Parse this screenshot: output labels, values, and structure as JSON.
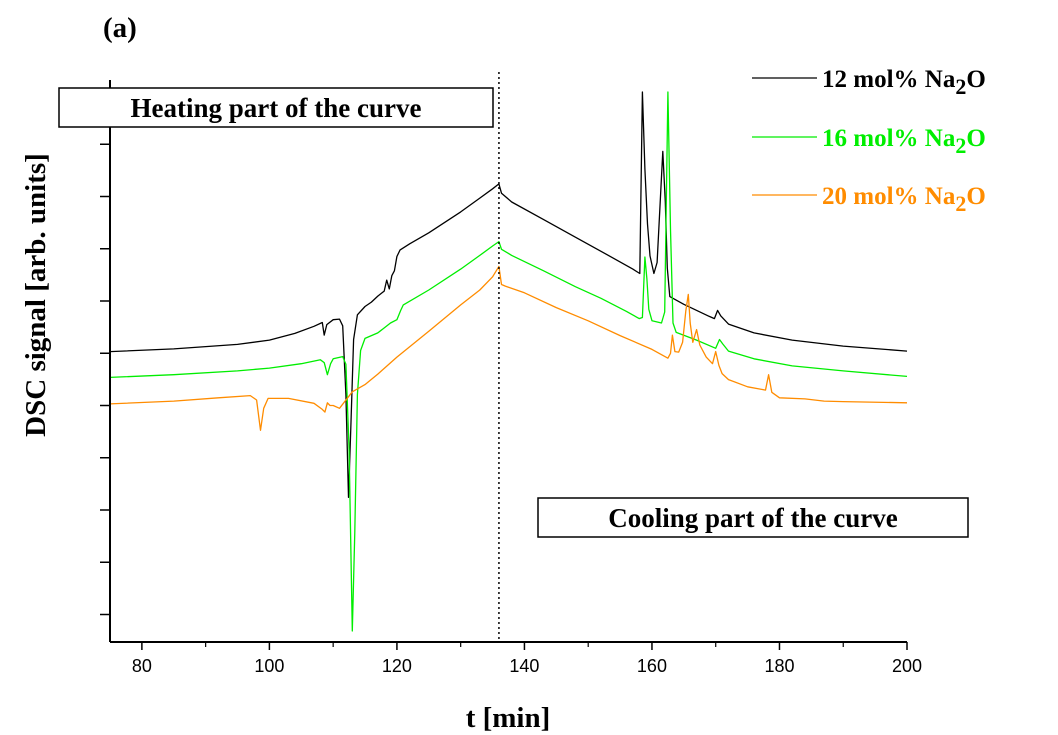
{
  "panel_label": "(a)",
  "chart_data": {
    "type": "line",
    "title": "",
    "xlabel": "t [min]",
    "ylabel": "DSC signal [arb. units]",
    "xlim": [
      75,
      200
    ],
    "ylim": [
      0,
      100
    ],
    "x_ticks": [
      80,
      100,
      120,
      140,
      160,
      180,
      200
    ],
    "y_tick_labels_shown": false,
    "grid": false,
    "legend_position": "top-right",
    "divider_x": 136,
    "annotations": [
      {
        "id": "heating",
        "text": "Heating part of the curve"
      },
      {
        "id": "cooling",
        "text": "Cooling part of the curve"
      }
    ],
    "series": [
      {
        "name": "12 mol% Na",
        "name_sub": "2",
        "name_suffix": "O",
        "color": "#000000",
        "points": [
          [
            75,
            52.8
          ],
          [
            85,
            53.3
          ],
          [
            95,
            54.1
          ],
          [
            100,
            54.9
          ],
          [
            104,
            56.1
          ],
          [
            107,
            57.4
          ],
          [
            108.3,
            58.1
          ],
          [
            108.6,
            55.8
          ],
          [
            109,
            57.7
          ],
          [
            110,
            58.6
          ],
          [
            111,
            58.7
          ],
          [
            111.5,
            57.5
          ],
          [
            112,
            45
          ],
          [
            112.4,
            26.3
          ],
          [
            112.8,
            40
          ],
          [
            113.2,
            55
          ],
          [
            113.8,
            59.5
          ],
          [
            115,
            61
          ],
          [
            116,
            61.8
          ],
          [
            117,
            62.9
          ],
          [
            118,
            63.8
          ],
          [
            118.4,
            65.8
          ],
          [
            118.8,
            64.2
          ],
          [
            119.2,
            66.6
          ],
          [
            119.6,
            67.5
          ],
          [
            120,
            70.1
          ],
          [
            120.5,
            71.3
          ],
          [
            122,
            72.4
          ],
          [
            125,
            74.4
          ],
          [
            130,
            78.2
          ],
          [
            133,
            80.7
          ],
          [
            135,
            82.4
          ],
          [
            136,
            83.3
          ],
          [
            136.4,
            81.6
          ],
          [
            138,
            80
          ],
          [
            143,
            76.8
          ],
          [
            148,
            73.6
          ],
          [
            153,
            70.4
          ],
          [
            157,
            67.8
          ],
          [
            158.1,
            67
          ],
          [
            158.5,
            100
          ],
          [
            158.9,
            86
          ],
          [
            159.3,
            76
          ],
          [
            159.7,
            70.2
          ],
          [
            160.3,
            67
          ],
          [
            160.8,
            69
          ],
          [
            161.3,
            80
          ],
          [
            161.7,
            89.2
          ],
          [
            162.1,
            80
          ],
          [
            162.4,
            68
          ],
          [
            162.8,
            62.8
          ],
          [
            165,
            61.4
          ],
          [
            169,
            59.2
          ],
          [
            169.8,
            58.8
          ],
          [
            170.3,
            60.3
          ],
          [
            170.8,
            59.3
          ],
          [
            172,
            57.8
          ],
          [
            176,
            56.2
          ],
          [
            182,
            54.9
          ],
          [
            190,
            53.8
          ],
          [
            200,
            52.9
          ]
        ]
      },
      {
        "name": "16 mol% Na",
        "name_sub": "2",
        "name_suffix": "O",
        "color": "#00ee00",
        "points": [
          [
            75,
            48.1
          ],
          [
            85,
            48.6
          ],
          [
            95,
            49.3
          ],
          [
            100,
            49.8
          ],
          [
            105,
            50.6
          ],
          [
            108,
            51.3
          ],
          [
            108.6,
            50.8
          ],
          [
            109.1,
            48.6
          ],
          [
            109.6,
            50.6
          ],
          [
            110,
            51.5
          ],
          [
            111.5,
            51.9
          ],
          [
            112,
            50.5
          ],
          [
            112.5,
            35
          ],
          [
            113,
            2
          ],
          [
            113.4,
            20
          ],
          [
            113.8,
            45
          ],
          [
            114.3,
            53
          ],
          [
            115,
            55.2
          ],
          [
            117,
            56.2
          ],
          [
            119,
            58
          ],
          [
            120,
            58.6
          ],
          [
            120.6,
            60.3
          ],
          [
            121,
            61.3
          ],
          [
            125,
            64
          ],
          [
            130,
            67.8
          ],
          [
            133,
            70.3
          ],
          [
            135,
            72
          ],
          [
            136,
            72.8
          ],
          [
            136.4,
            71.4
          ],
          [
            138,
            70.3
          ],
          [
            143,
            67.5
          ],
          [
            148,
            64.6
          ],
          [
            152,
            62.5
          ],
          [
            156,
            60.1
          ],
          [
            158,
            58.8
          ],
          [
            158.5,
            59
          ],
          [
            158.9,
            70
          ],
          [
            159.2,
            66
          ],
          [
            159.5,
            60.5
          ],
          [
            160,
            58.4
          ],
          [
            161.5,
            58
          ],
          [
            162,
            60
          ],
          [
            162.5,
            100
          ],
          [
            162.9,
            75
          ],
          [
            163.3,
            58
          ],
          [
            163.8,
            56.3
          ],
          [
            167,
            54.9
          ],
          [
            170,
            53.4
          ],
          [
            170.6,
            55
          ],
          [
            171.1,
            54.2
          ],
          [
            172,
            52.9
          ],
          [
            176,
            51.5
          ],
          [
            182,
            50.2
          ],
          [
            190,
            49.3
          ],
          [
            200,
            48.3
          ]
        ]
      },
      {
        "name": "20 mol% Na",
        "name_sub": "2",
        "name_suffix": "O",
        "color": "#ff8c00",
        "points": [
          [
            75,
            43.3
          ],
          [
            85,
            43.8
          ],
          [
            92,
            44.4
          ],
          [
            97,
            44.8
          ],
          [
            98,
            44
          ],
          [
            98.6,
            38.5
          ],
          [
            99.1,
            42.5
          ],
          [
            99.8,
            44.3
          ],
          [
            103,
            44.3
          ],
          [
            107,
            43.4
          ],
          [
            108.3,
            42.3
          ],
          [
            108.7,
            41.8
          ],
          [
            109.1,
            43.5
          ],
          [
            109.5,
            43
          ],
          [
            110,
            43
          ],
          [
            111,
            42.5
          ],
          [
            113,
            45.5
          ],
          [
            115,
            46.8
          ],
          [
            117,
            48.7
          ],
          [
            120,
            51.8
          ],
          [
            125,
            56.5
          ],
          [
            130,
            61.3
          ],
          [
            133,
            64
          ],
          [
            135,
            66.4
          ],
          [
            136,
            68.3
          ],
          [
            136.4,
            65
          ],
          [
            137,
            64.7
          ],
          [
            140,
            63.5
          ],
          [
            145,
            60.8
          ],
          [
            150,
            58.4
          ],
          [
            155,
            55.7
          ],
          [
            160,
            53.2
          ],
          [
            162.5,
            51.6
          ],
          [
            162.9,
            52.5
          ],
          [
            163.2,
            55.8
          ],
          [
            163.6,
            52.8
          ],
          [
            164.2,
            52.7
          ],
          [
            164.8,
            54.5
          ],
          [
            165.3,
            60.2
          ],
          [
            165.7,
            63.2
          ],
          [
            166,
            58
          ],
          [
            166.4,
            54.5
          ],
          [
            167,
            56.8
          ],
          [
            167.5,
            54
          ],
          [
            168.5,
            51.8
          ],
          [
            169.5,
            50.6
          ],
          [
            170,
            52.8
          ],
          [
            170.5,
            50.3
          ],
          [
            171,
            48.8
          ],
          [
            172,
            47.7
          ],
          [
            175,
            46.4
          ],
          [
            177.8,
            45.8
          ],
          [
            178.3,
            48.6
          ],
          [
            178.8,
            45.4
          ],
          [
            180,
            44.4
          ],
          [
            184,
            44.2
          ],
          [
            187,
            43.8
          ],
          [
            190,
            43.7
          ],
          [
            200,
            43.5
          ]
        ]
      }
    ]
  }
}
